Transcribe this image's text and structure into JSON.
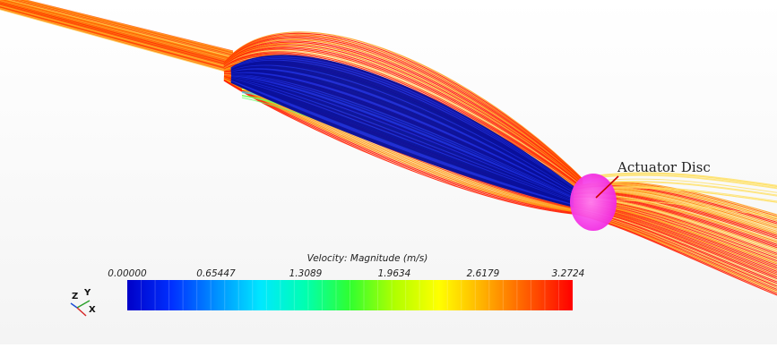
{
  "scene": {
    "annotation": "Actuator Disc",
    "colors": {
      "background": "#ffffff",
      "disc": "#ff3ef0",
      "core": "#0a109c"
    }
  },
  "colorbar": {
    "title": "Velocity: Magnitude (m/s)",
    "ticks": [
      "0.00000",
      "0.65447",
      "1.3089",
      "1.9634",
      "2.6179",
      "3.2724"
    ],
    "min": 0.0,
    "max": 3.2724,
    "colormap": [
      "#0000c8",
      "#0040ff",
      "#00a0ff",
      "#00ffff",
      "#00ff80",
      "#40ff00",
      "#c0ff00",
      "#ffff00",
      "#ffb000",
      "#ff6000",
      "#ff0000"
    ]
  },
  "axes_triad": {
    "z": "Z",
    "y": "Y",
    "x": "X"
  }
}
